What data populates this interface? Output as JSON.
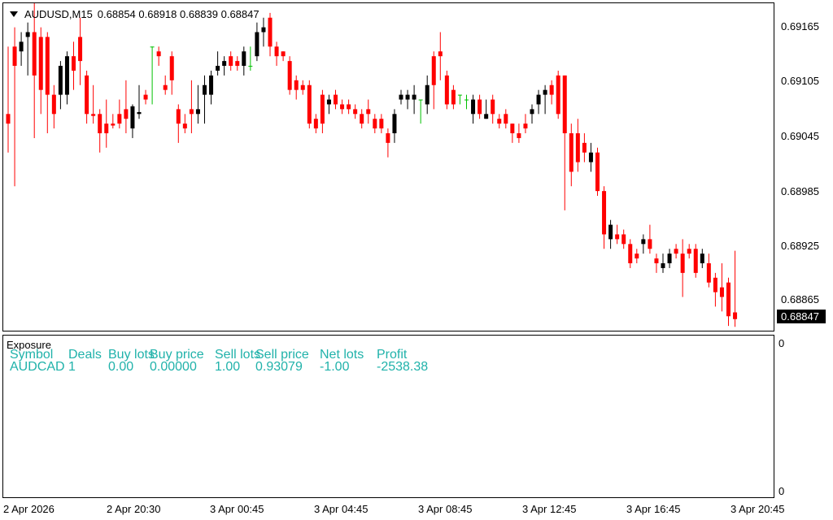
{
  "header": {
    "symbol_tf": "AUDUSD,M15",
    "ohlc": "0.68854 0.68918 0.68839 0.68847"
  },
  "price_axis": {
    "labels": [
      "0.69165",
      "0.69105",
      "0.69045",
      "0.68985",
      "0.68925",
      "0.68865"
    ],
    "current_price": "0.68847"
  },
  "time_axis": [
    "2 Apr 2026",
    "2 Apr 20:30",
    "3 Apr 00:45",
    "3 Apr 04:45",
    "3 Apr 08:45",
    "3 Apr 12:45",
    "3 Apr 16:45",
    "3 Apr 20:45"
  ],
  "subwindow": {
    "title": "Exposure",
    "scale_top": "0",
    "scale_bottom": "0",
    "columns": [
      "Symbol",
      "Deals",
      "Buy lots",
      "Buy price",
      "Sell lots",
      "Sell price",
      "Net lots",
      "Profit"
    ],
    "row": [
      "AUDCAD",
      "1",
      "0.00",
      "0.00000",
      "1.00",
      "0.93079",
      "-1.00",
      "-2538.38"
    ],
    "text_color": "#20b2aa"
  },
  "colors": {
    "bull": "#000000",
    "bear": "#ff0000",
    "doji": "#00c000"
  },
  "chart_data": {
    "type": "candlestick",
    "y_range": [
      0.68835,
      0.69175
    ],
    "candles": [
      [
        0.6906,
        0.6905,
        0.6913,
        0.6902
      ],
      [
        0.6913,
        0.6911,
        0.6915,
        0.68985
      ],
      [
        0.69125,
        0.69135,
        0.69145,
        0.6911
      ],
      [
        0.6914,
        0.69145,
        0.69155,
        0.691
      ],
      [
        0.69145,
        0.691,
        0.6918,
        0.69035
      ],
      [
        0.6914,
        0.69085,
        0.6915,
        0.6906
      ],
      [
        0.6914,
        0.6908,
        0.69145,
        0.6904
      ],
      [
        0.6908,
        0.6906,
        0.6909,
        0.69045
      ],
      [
        0.6908,
        0.6911,
        0.69115,
        0.69065
      ],
      [
        0.6908,
        0.6912,
        0.69125,
        0.6907
      ],
      [
        0.6912,
        0.69105,
        0.69135,
        0.69085
      ],
      [
        0.6914,
        0.69115,
        0.6916,
        0.6909
      ],
      [
        0.691,
        0.6906,
        0.69105,
        0.6905
      ],
      [
        0.6906,
        0.69058,
        0.6909,
        0.6905
      ],
      [
        0.6906,
        0.6904,
        0.69065,
        0.6902
      ],
      [
        0.6905,
        0.6904,
        0.69075,
        0.69025
      ],
      [
        0.6905,
        0.69048,
        0.6906,
        0.69045
      ],
      [
        0.6906,
        0.6905,
        0.69075,
        0.69045
      ],
      [
        0.69065,
        0.69055,
        0.69095,
        0.6904
      ],
      [
        0.69045,
        0.69068,
        0.6907,
        0.69035
      ],
      [
        0.6906,
        0.69062,
        0.6909,
        0.69055
      ],
      [
        0.6908,
        0.69075,
        0.69085,
        0.6907
      ],
      [
        0.6913,
        0.6913,
        0.6913,
        0.6907
      ],
      [
        0.69125,
        0.6912,
        0.6913,
        0.6911
      ],
      [
        0.6909,
        0.69085,
        0.691,
        0.6908
      ],
      [
        0.6912,
        0.69095,
        0.69125,
        0.6908
      ],
      [
        0.69065,
        0.6905,
        0.6907,
        0.6903
      ],
      [
        0.6905,
        0.69045,
        0.6906,
        0.6904
      ],
      [
        0.69065,
        0.6906,
        0.69095,
        0.6904
      ],
      [
        0.6906,
        0.69065,
        0.6909,
        0.6905
      ],
      [
        0.6908,
        0.6909,
        0.691,
        0.6905
      ],
      [
        0.6908,
        0.691,
        0.69105,
        0.6907
      ],
      [
        0.69105,
        0.6911,
        0.69125,
        0.691
      ],
      [
        0.6911,
        0.69115,
        0.6912,
        0.691
      ],
      [
        0.6912,
        0.6911,
        0.69125,
        0.69105
      ],
      [
        0.69115,
        0.6911,
        0.6912,
        0.69105
      ],
      [
        0.6911,
        0.69125,
        0.6913,
        0.691
      ],
      [
        0.6911,
        0.6911,
        0.6913,
        0.69105
      ],
      [
        0.6912,
        0.69145,
        0.69155,
        0.69115
      ],
      [
        0.69145,
        0.6915,
        0.6916,
        0.6913
      ],
      [
        0.6916,
        0.6913,
        0.69165,
        0.6912
      ],
      [
        0.6913,
        0.6912,
        0.69135,
        0.6911
      ],
      [
        0.69125,
        0.6912,
        0.69125,
        0.69115
      ],
      [
        0.69115,
        0.69085,
        0.6912,
        0.6908
      ],
      [
        0.69095,
        0.69085,
        0.691,
        0.69075
      ],
      [
        0.6909,
        0.69085,
        0.69095,
        0.6908
      ],
      [
        0.6909,
        0.6905,
        0.69095,
        0.69045
      ],
      [
        0.69055,
        0.69045,
        0.6906,
        0.6904
      ],
      [
        0.6908,
        0.6905,
        0.69085,
        0.6904
      ],
      [
        0.6907,
        0.69075,
        0.6908,
        0.6906
      ],
      [
        0.6908,
        0.6907,
        0.69085,
        0.69065
      ],
      [
        0.6907,
        0.69065,
        0.69075,
        0.6906
      ],
      [
        0.6907,
        0.69065,
        0.69075,
        0.6906
      ],
      [
        0.69065,
        0.6906,
        0.6907,
        0.69055
      ],
      [
        0.6906,
        0.6905,
        0.69065,
        0.69045
      ],
      [
        0.69065,
        0.6906,
        0.69075,
        0.6905
      ],
      [
        0.69055,
        0.69045,
        0.6906,
        0.6904
      ],
      [
        0.69055,
        0.69045,
        0.6906,
        0.6904
      ],
      [
        0.6904,
        0.6903,
        0.69045,
        0.69015
      ],
      [
        0.6904,
        0.6906,
        0.69065,
        0.6903
      ],
      [
        0.69075,
        0.6908,
        0.69085,
        0.6907
      ],
      [
        0.69075,
        0.6908,
        0.69085,
        0.69065
      ],
      [
        0.69075,
        0.6908,
        0.6909,
        0.6906
      ],
      [
        0.69075,
        0.69075,
        0.69075,
        0.6905
      ],
      [
        0.6907,
        0.6909,
        0.691,
        0.6906
      ],
      [
        0.6912,
        0.6909,
        0.69125,
        0.69065
      ],
      [
        0.69125,
        0.6912,
        0.69145,
        0.69095
      ],
      [
        0.691,
        0.6907,
        0.69105,
        0.69065
      ],
      [
        0.69085,
        0.6907,
        0.6909,
        0.69065
      ],
      [
        0.6908,
        0.6908,
        0.6908,
        0.6907
      ],
      [
        0.69075,
        0.69075,
        0.6908,
        0.69065
      ],
      [
        0.6906,
        0.69075,
        0.6908,
        0.6905
      ],
      [
        0.69075,
        0.6906,
        0.6908,
        0.69055
      ],
      [
        0.69055,
        0.6906,
        0.69075,
        0.69055
      ],
      [
        0.69075,
        0.6906,
        0.6908,
        0.6905
      ],
      [
        0.69055,
        0.6905,
        0.6906,
        0.69045
      ],
      [
        0.6906,
        0.6905,
        0.69065,
        0.69045
      ],
      [
        0.6905,
        0.6904,
        0.6905,
        0.6903
      ],
      [
        0.6904,
        0.69035,
        0.6905,
        0.6903
      ],
      [
        0.6905,
        0.69045,
        0.6906,
        0.6904
      ],
      [
        0.6906,
        0.69065,
        0.6907,
        0.6905
      ],
      [
        0.6907,
        0.6908,
        0.69085,
        0.6906
      ],
      [
        0.6908,
        0.69085,
        0.6909,
        0.6906
      ],
      [
        0.6909,
        0.6908,
        0.69095,
        0.6907
      ],
      [
        0.691,
        0.6906,
        0.69105,
        0.69055
      ],
      [
        0.691,
        0.6904,
        0.691,
        0.6896
      ],
      [
        0.6904,
        0.69,
        0.6905,
        0.68985
      ],
      [
        0.6904,
        0.6901,
        0.69055,
        0.69
      ],
      [
        0.6903,
        0.6902,
        0.6904,
        0.6901
      ],
      [
        0.6901,
        0.6902,
        0.6903,
        0.69
      ],
      [
        0.6902,
        0.6898,
        0.69025,
        0.68975
      ],
      [
        0.6898,
        0.68935,
        0.68985,
        0.6892
      ],
      [
        0.6893,
        0.68945,
        0.6895,
        0.6892
      ],
      [
        0.68935,
        0.6893,
        0.68945,
        0.68925
      ],
      [
        0.68935,
        0.68925,
        0.6894,
        0.6892
      ],
      [
        0.68925,
        0.68905,
        0.6893,
        0.689
      ],
      [
        0.68915,
        0.6891,
        0.6892,
        0.68905
      ],
      [
        0.68925,
        0.6893,
        0.68935,
        0.68915
      ],
      [
        0.6893,
        0.6892,
        0.68945,
        0.68915
      ],
      [
        0.6891,
        0.68905,
        0.68915,
        0.68895
      ],
      [
        0.689,
        0.68905,
        0.68915,
        0.68895
      ],
      [
        0.68905,
        0.68915,
        0.6892,
        0.689
      ],
      [
        0.6892,
        0.68915,
        0.68925,
        0.6891
      ],
      [
        0.68915,
        0.68895,
        0.6893,
        0.6887
      ],
      [
        0.6892,
        0.68915,
        0.68925,
        0.6891
      ],
      [
        0.6892,
        0.68895,
        0.68925,
        0.6889
      ],
      [
        0.68905,
        0.68915,
        0.6892,
        0.689
      ],
      [
        0.68905,
        0.68885,
        0.68915,
        0.6888
      ],
      [
        0.6889,
        0.68875,
        0.68895,
        0.6886
      ],
      [
        0.6888,
        0.6887,
        0.68905,
        0.68855
      ],
      [
        0.68885,
        0.6885,
        0.6889,
        0.6884
      ],
      [
        0.68854,
        0.68847,
        0.68918,
        0.68839
      ]
    ]
  }
}
